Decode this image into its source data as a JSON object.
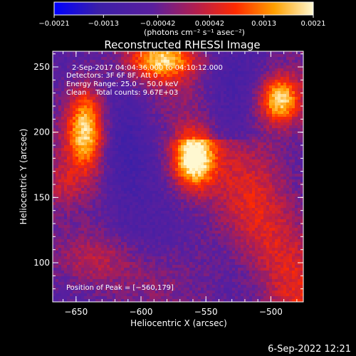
{
  "chart_data": {
    "type": "heatmap",
    "title": "Reconstructed RHESSI Image",
    "xlabel": "Heliocentric X (arcsec)",
    "ylabel": "Heliocentric Y (arcsec)",
    "xlim": [
      -668,
      -475
    ],
    "ylim": [
      70,
      262
    ],
    "x_ticks": [
      -650,
      -600,
      -550,
      -500
    ],
    "y_ticks": [
      100,
      150,
      200,
      250
    ],
    "x_tick_labels": [
      "−650",
      "−600",
      "−550",
      "−500"
    ],
    "y_tick_labels": [
      "100",
      "150",
      "200",
      "250"
    ],
    "colorbar": {
      "ticks": [
        -0.0021,
        -0.0013,
        -0.00042,
        0.00042,
        0.0013,
        0.0021
      ],
      "tick_labels": [
        "−0.0021",
        "−0.0013",
        "−0.00042",
        "0.00042",
        "0.0013",
        "0.0021"
      ],
      "units": "(photons cm⁻² s⁻¹ asec⁻²)",
      "colors": [
        "#0000ff",
        "#3b1fa8",
        "#5a1f9e",
        "#b41e4d",
        "#ff2a00",
        "#ffa000",
        "#fff8d0"
      ]
    },
    "annotations": {
      "time": "2-Sep-2017 04:04:36.000 to 04:10:12.000",
      "detectors": "Detectors: 3F 6F 8F, Att 0",
      "energy": "Energy Range: 25.0 − 50.0 keV",
      "clean": "Clean    Total counts: 9.67E+03",
      "peak": "Position of Peak = [−560,179]"
    },
    "sources": [
      {
        "x": -560,
        "y": 179,
        "peak": 0.0021
      },
      {
        "x": -643,
        "y": 202,
        "peak": 0.0017
      },
      {
        "x": -493,
        "y": 225,
        "peak": 0.0018
      },
      {
        "x": -585,
        "y": 255,
        "peak": 0.0012
      }
    ],
    "footer_date": "6-Sep-2022 12:21"
  }
}
